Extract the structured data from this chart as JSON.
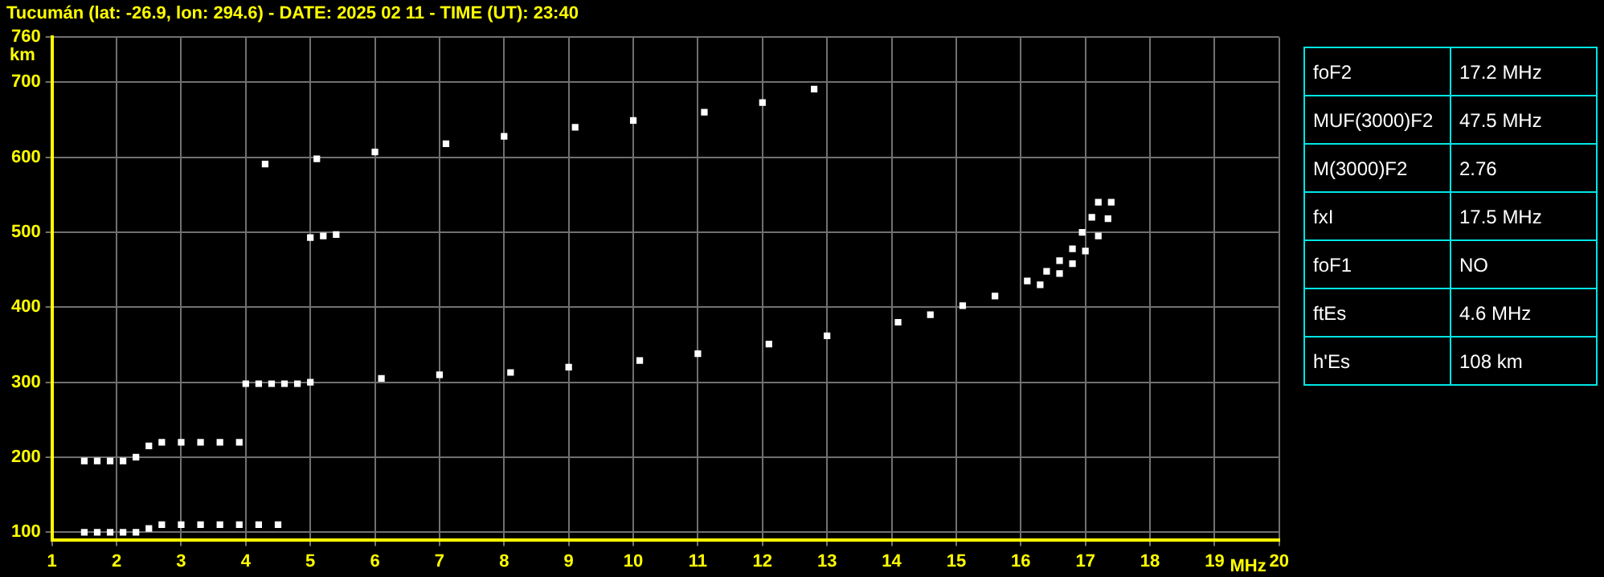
{
  "chart_data": {
    "type": "scatter",
    "title": "Tucumán (lat: -26.9, lon: 294.6) - DATE: 2025 02 11 - TIME (UT): 23:40",
    "xlabel": "MHz",
    "ylabel": "km",
    "xlim": [
      1,
      20
    ],
    "xticks": [
      1,
      2,
      3,
      4,
      5,
      6,
      7,
      8,
      9,
      10,
      11,
      12,
      13,
      14,
      15,
      16,
      17,
      18,
      19,
      20
    ],
    "ylim": [
      90,
      760
    ],
    "yticks": [
      100,
      200,
      300,
      400,
      500,
      600,
      700,
      760
    ],
    "grid": true,
    "marker": "square",
    "legend": false,
    "series": [
      {
        "color": "#ffffff",
        "x": [
          1.5,
          1.7,
          1.9,
          2.1,
          2.3,
          2.5,
          2.7,
          3.0,
          3.3,
          3.6,
          3.9,
          4.2,
          4.5
        ],
        "values": [
          100,
          100,
          100,
          100,
          100,
          105,
          110,
          110,
          110,
          110,
          110,
          110,
          110
        ]
      },
      {
        "color": "#ffffff",
        "x": [
          1.5,
          1.7,
          1.9,
          2.1,
          2.3,
          2.5,
          2.7,
          3.0,
          3.3,
          3.6,
          3.9
        ],
        "values": [
          195,
          195,
          195,
          195,
          200,
          215,
          220,
          220,
          220,
          220,
          220
        ]
      },
      {
        "color": "#ffffff",
        "x": [
          4.0,
          4.2,
          4.4,
          4.6,
          4.8,
          5.0
        ],
        "values": [
          298,
          298,
          298,
          298,
          298,
          300
        ]
      },
      {
        "color": "#ffffff",
        "x": [
          5.0,
          5.2,
          5.4
        ],
        "values": [
          493,
          495,
          497
        ]
      },
      {
        "color": "#ffffff",
        "x": [
          6.1,
          7.0,
          8.1,
          9.0,
          10.1,
          11.0,
          12.1,
          13.0,
          14.1,
          14.6,
          15.1,
          15.6,
          16.1,
          16.4,
          16.6,
          16.8,
          16.95,
          17.1,
          17.2
        ],
        "values": [
          305,
          310,
          313,
          320,
          329,
          338,
          351,
          362,
          380,
          390,
          402,
          415,
          435,
          448,
          462,
          478,
          500,
          520,
          540
        ]
      },
      {
        "color": "#ffffff",
        "x": [
          16.3,
          16.6,
          16.8,
          17.0,
          17.2,
          17.35,
          17.4
        ],
        "values": [
          430,
          445,
          458,
          475,
          495,
          518,
          540
        ]
      },
      {
        "color": "#ffffff",
        "x": [
          4.3,
          5.1,
          6.0,
          7.1,
          8.0,
          9.1,
          10.0,
          11.1,
          12.0,
          12.8
        ],
        "values": [
          591,
          598,
          607,
          618,
          628,
          640,
          649,
          660,
          673,
          691
        ]
      }
    ],
    "annotations": [
      "foF2",
      "17.2 MHz",
      "MUF(3000)F2",
      "47.5 MHz",
      "M(3000)F2",
      "2.76",
      "fxI",
      "17.5 MHz",
      "foF1",
      "NO",
      "ftEs",
      "4.6 MHz",
      "h'Es",
      "108 km"
    ]
  }
}
